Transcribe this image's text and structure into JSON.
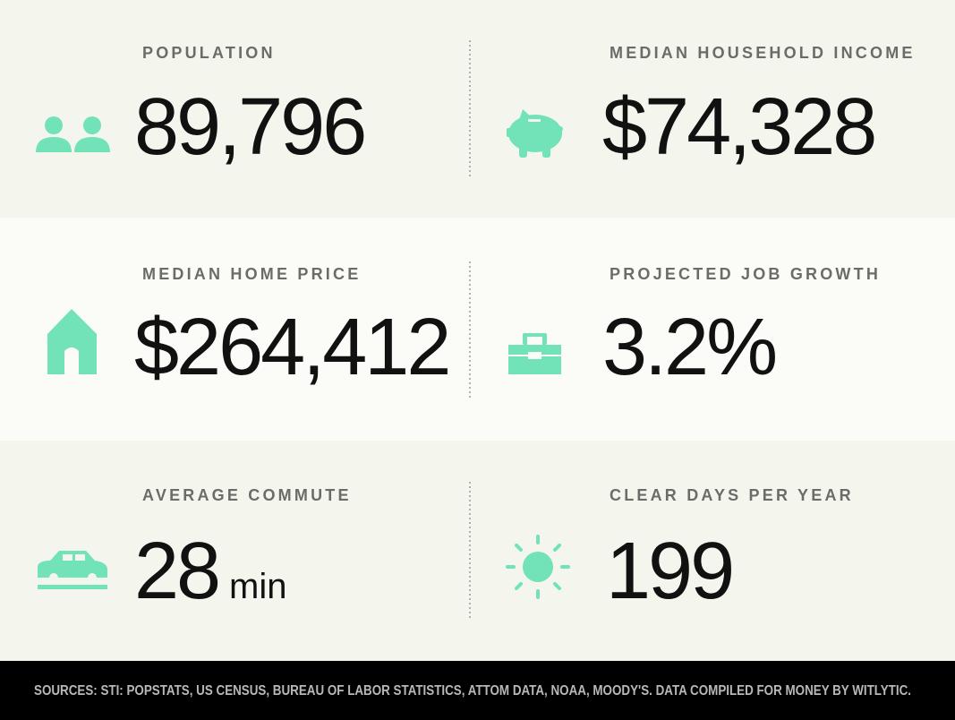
{
  "stats": [
    {
      "label": "POPULATION",
      "value": "89,796"
    },
    {
      "label": "MEDIAN HOUSEHOLD INCOME",
      "value": "$74,328"
    },
    {
      "label": "MEDIAN HOME PRICE",
      "value": "$264,412"
    },
    {
      "label": "PROJECTED JOB GROWTH",
      "value": "3.2%"
    },
    {
      "label": "AVERAGE COMMUTE",
      "value": "28",
      "unit": "min"
    },
    {
      "label": "CLEAR DAYS PER YEAR",
      "value": "199"
    }
  ],
  "footer": {
    "sources": "SOURCES: STI: POPSTATS, US CENSUS, BUREAU OF LABOR STATISTICS, ATTOM DATA, NOAA, MOODY'S. DATA COMPILED FOR MONEY BY WITLYTIC."
  }
}
